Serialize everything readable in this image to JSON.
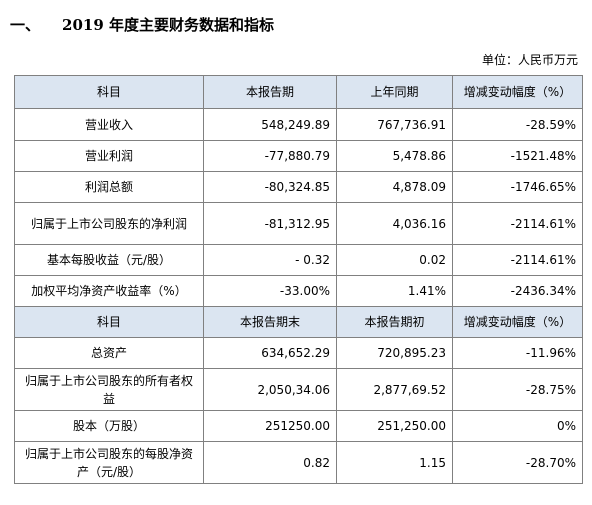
{
  "heading": {
    "num": "一、",
    "title": "2019 年度主要财务数据和指标"
  },
  "unit_label": "单位：人民币万元",
  "table": {
    "header1": [
      "科目",
      "本报告期",
      "上年同期",
      "增减变动幅度（%）"
    ],
    "rows1": [
      [
        "营业收入",
        "548,249.89",
        "767,736.91",
        "-28.59%"
      ],
      [
        "营业利润",
        "-77,880.79",
        "5,478.86",
        "-1521.48%"
      ],
      [
        "利润总额",
        "-80,324.85",
        "4,878.09",
        "-1746.65%"
      ],
      [
        "归属于上市公司股东的净利润",
        "-81,312.95",
        "4,036.16",
        "-2114.61%"
      ],
      [
        "基本每股收益（元/股）",
        "- 0.32",
        "0.02",
        "-2114.61%"
      ],
      [
        "加权平均净资产收益率（%）",
        "-33.00%",
        "1.41%",
        "-2436.34%"
      ]
    ],
    "header2": [
      "科目",
      "本报告期末",
      "本报告期初",
      "增减变动幅度（%）"
    ],
    "rows2": [
      [
        "总资产",
        "634,652.29",
        "720,895.23",
        "-11.96%"
      ],
      [
        "归属于上市公司股东的所有者权益",
        "2,050,34.06",
        "2,877,69.52",
        "-28.75%"
      ],
      [
        "股本（万股）",
        "251250.00",
        "251,250.00",
        "0%"
      ],
      [
        "归属于上市公司股东的每股净资产（元/股）",
        "0.82",
        "1.15",
        "-28.70%"
      ]
    ]
  }
}
